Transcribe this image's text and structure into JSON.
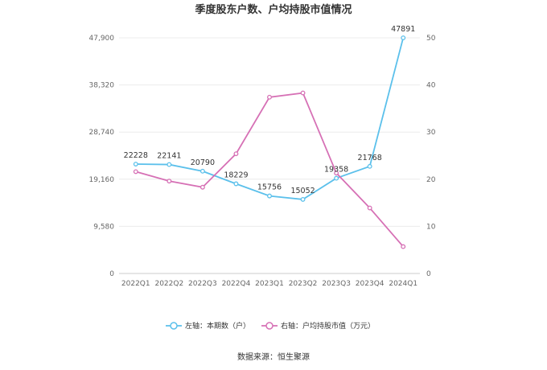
{
  "chart_data": {
    "type": "line",
    "title": "季度股东户数、户均持股市值情况",
    "categories": [
      "2022Q1",
      "2022Q2",
      "2022Q3",
      "2022Q4",
      "2023Q1",
      "2023Q2",
      "2023Q3",
      "2023Q4",
      "2024Q1"
    ],
    "left_axis": {
      "ticks": [
        "0",
        "9,580",
        "19,160",
        "28,740",
        "38,320",
        "47,900"
      ],
      "ylim": [
        0,
        47900
      ]
    },
    "right_axis": {
      "ticks": [
        "0",
        "10",
        "20",
        "30",
        "40",
        "50"
      ],
      "ylim": [
        0,
        50
      ]
    },
    "grid": true,
    "legend_position": "bottom",
    "series": [
      {
        "name": "左轴：本期数（户）",
        "axis": "left",
        "color": "#5bc0eb",
        "values": [
          22228,
          22141,
          20790,
          18229,
          15756,
          15052,
          19358,
          21768,
          47891
        ],
        "labels": [
          "22228",
          "22141",
          "20790",
          "18229",
          "15756",
          "15052",
          "19358",
          "21768",
          "47891"
        ]
      },
      {
        "name": "右轴：户均持股市值（万元）",
        "axis": "right",
        "color": "#d670b5",
        "values": [
          21.6,
          19.6,
          18.3,
          25.4,
          37.4,
          38.3,
          21.3,
          13.9,
          5.7
        ]
      }
    ],
    "source": "数据来源：恒生聚源"
  }
}
